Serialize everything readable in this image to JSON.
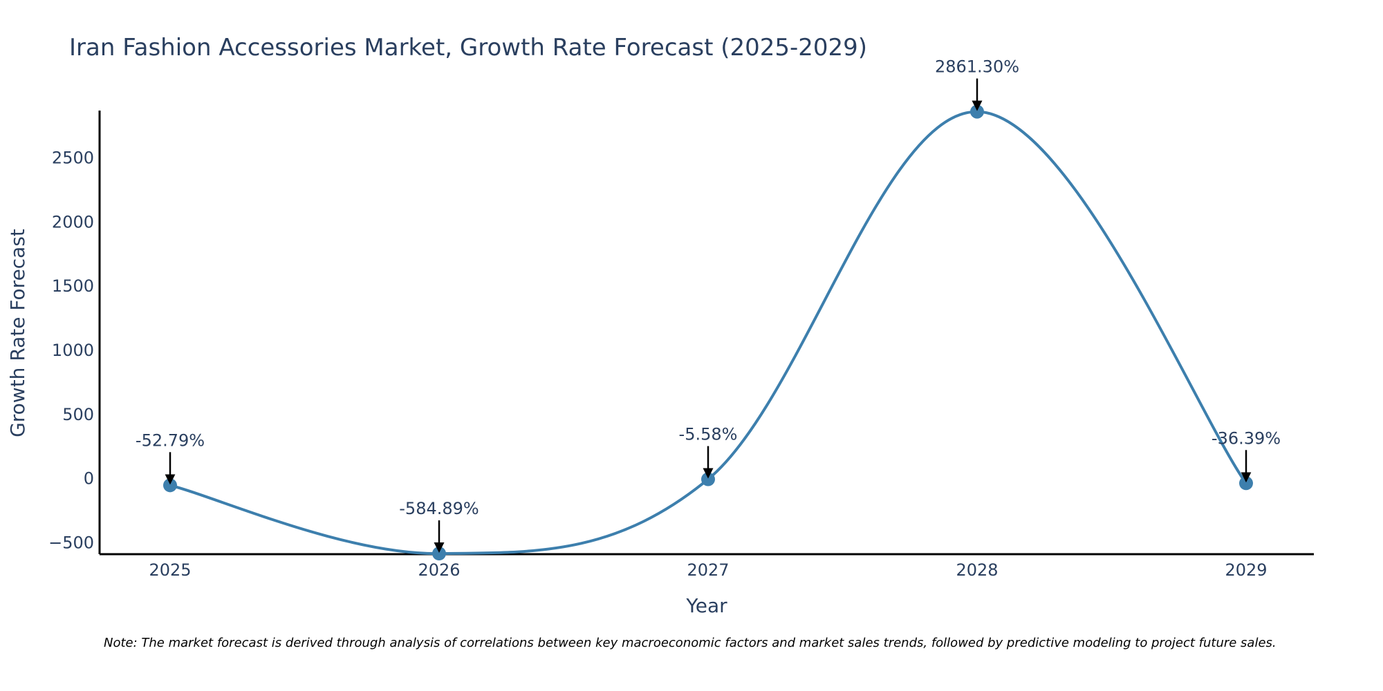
{
  "chart_data": {
    "type": "line",
    "title": "Iran Fashion Accessories Market, Growth Rate Forecast (2025-2029)",
    "xlabel": "Year",
    "ylabel": "Growth Rate Forecast",
    "categories": [
      "2025",
      "2026",
      "2027",
      "2028",
      "2029"
    ],
    "values": [
      -52.79,
      -584.89,
      -5.58,
      2861.3,
      -36.39
    ],
    "data_labels": [
      "-52.79%",
      "-584.89%",
      "-5.58%",
      "2861.30%",
      "-36.39%"
    ],
    "yticks": [
      -500,
      0,
      500,
      1000,
      1500,
      2000,
      2500
    ],
    "ytick_labels": [
      "−500",
      "0",
      "500",
      "1000",
      "1500",
      "2000",
      "2500"
    ],
    "ylim": [
      -590,
      2870
    ],
    "grid": false,
    "line_color": "#3d7fad",
    "annotation_color": "#000000"
  },
  "note": "Note: The market forecast is derived through analysis of correlations between key macroeconomic factors and market sales trends, followed by predictive modeling to project future sales."
}
